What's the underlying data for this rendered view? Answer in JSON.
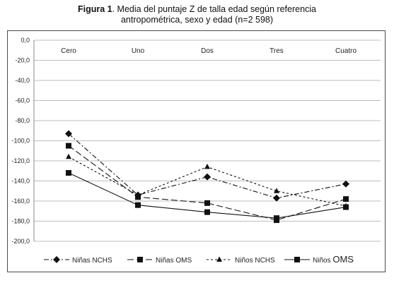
{
  "figure": {
    "label": "Figura 1",
    "caption_line1": ". Media del puntaje Z de talla edad según referencia",
    "caption_line2": "antropométrica, sexo y edad (n=2 598)"
  },
  "chart_data": {
    "type": "line",
    "categories": [
      "Cero",
      "Uno",
      "Dos",
      "Tres",
      "Cuatro"
    ],
    "y_ticks": [
      "0,0",
      "-20,0",
      "-40,0",
      "-60,0",
      "-80,0",
      "-100,0",
      "-120,0",
      "-140,0",
      "-160,0",
      "-180,0",
      "-200,0"
    ],
    "ylim": [
      -200,
      0
    ],
    "grid": true,
    "legend_position": "bottom",
    "series": [
      {
        "name": "Niñas NCHS",
        "legend_prefix": "Niñas",
        "legend_suffix": "NCHS",
        "values": [
          -93,
          -154,
          -136,
          -157,
          -143
        ],
        "marker": "diamond",
        "dash": "7 3 2 3",
        "color": "#111111"
      },
      {
        "name": "Niñas OMS",
        "legend_prefix": "Niñas",
        "legend_suffix": "OMS",
        "values": [
          -105,
          -156,
          -162,
          -179,
          -158
        ],
        "marker": "square",
        "dash": "9 4",
        "color": "#111111"
      },
      {
        "name": "Niños NCHS",
        "legend_prefix": "Niños",
        "legend_suffix": "NCHS",
        "values": [
          -116,
          -154,
          -126,
          -150,
          -165
        ],
        "marker": "triangle",
        "dash": "3 3",
        "color": "#111111"
      },
      {
        "name": "Niños OMS",
        "legend_prefix": "Niños",
        "legend_suffix": "OMS",
        "values": [
          -132,
          -164,
          -171,
          -177,
          -166
        ],
        "marker": "square",
        "dash": "",
        "color": "#111111"
      }
    ]
  }
}
